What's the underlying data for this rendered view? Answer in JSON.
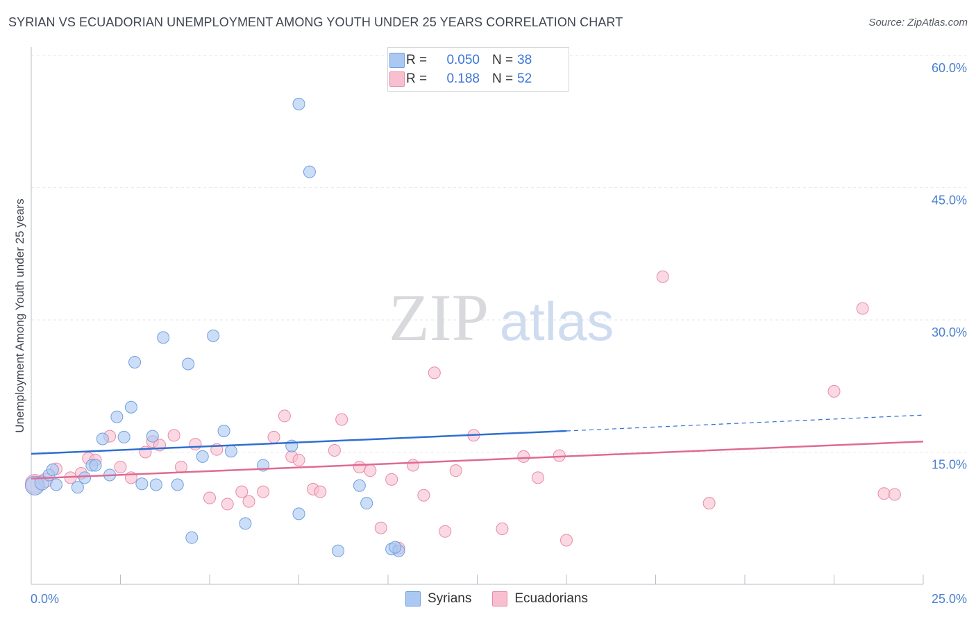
{
  "title": "SYRIAN VS ECUADORIAN UNEMPLOYMENT AMONG YOUTH UNDER 25 YEARS CORRELATION CHART",
  "source": "Source: ZipAtlas.com",
  "watermark": {
    "zip": "ZIP",
    "atlas": "atlas"
  },
  "legend": {
    "rows": [
      {
        "r_label": "R =",
        "r_value": "0.050",
        "n_label": "N =",
        "n_value": "38"
      },
      {
        "r_label": "R =",
        "r_value": "0.188",
        "n_label": "N =",
        "n_value": "52"
      }
    ]
  },
  "bottom_legend": [
    "Syrians",
    "Ecuadorians"
  ],
  "colors": {
    "syrian_fill": "#aac8f2",
    "syrian_stroke": "#6f9fe0",
    "syrian_line": "#2f6fd0",
    "ecuador_fill": "#f7bfd0",
    "ecuador_stroke": "#e88aa8",
    "ecuador_line": "#e06a92",
    "tick": "#4a7fd0",
    "grid": "#e3e5e9"
  },
  "chart_data": {
    "type": "scatter",
    "title": "SYRIAN VS ECUADORIAN UNEMPLOYMENT AMONG YOUTH UNDER 25 YEARS CORRELATION CHART",
    "xlabel": "",
    "ylabel": "Unemployment Among Youth under 25 years",
    "xlim": [
      0,
      25
    ],
    "ylim": [
      0,
      60
    ],
    "x_tick_labels": [
      "0.0%",
      "25.0%"
    ],
    "y_ticks": [
      15,
      30,
      45,
      60
    ],
    "y_tick_labels": [
      "15.0%",
      "30.0%",
      "45.0%",
      "60.0%"
    ],
    "series": [
      {
        "name": "Syrians",
        "R": 0.05,
        "N": 38,
        "trend": {
          "x0": 0,
          "y0": 14.8,
          "x1": 15,
          "y1": 17.4,
          "dashed_to_x": 25,
          "dashed_to_y": 19.2
        },
        "points": [
          [
            0.1,
            11.2,
            1.6
          ],
          [
            0.3,
            11.5,
            1.2
          ],
          [
            0.5,
            12.4,
            1
          ],
          [
            0.6,
            13.0,
            1
          ],
          [
            0.7,
            11.3,
            1
          ],
          [
            1.3,
            11.0,
            1
          ],
          [
            1.5,
            12.1,
            1
          ],
          [
            1.7,
            13.5,
            1
          ],
          [
            1.8,
            13.5,
            1
          ],
          [
            2.0,
            16.5,
            1
          ],
          [
            2.2,
            12.4,
            1
          ],
          [
            2.4,
            19.0,
            1
          ],
          [
            2.6,
            16.7,
            1
          ],
          [
            2.8,
            20.1,
            1
          ],
          [
            2.9,
            25.2,
            1
          ],
          [
            3.1,
            11.4,
            1
          ],
          [
            3.4,
            16.8,
            1
          ],
          [
            3.5,
            11.3,
            1
          ],
          [
            3.7,
            28.0,
            1
          ],
          [
            4.1,
            11.3,
            1
          ],
          [
            4.4,
            25.0,
            1
          ],
          [
            4.5,
            5.3,
            1
          ],
          [
            4.8,
            14.5,
            1
          ],
          [
            5.1,
            28.2,
            1
          ],
          [
            5.4,
            17.4,
            1
          ],
          [
            5.6,
            15.1,
            1
          ],
          [
            6.0,
            6.9,
            1
          ],
          [
            6.5,
            13.5,
            1
          ],
          [
            7.3,
            15.7,
            1
          ],
          [
            7.5,
            8.0,
            1
          ],
          [
            7.5,
            54.5,
            1
          ],
          [
            7.8,
            46.8,
            1
          ],
          [
            8.6,
            3.8,
            1
          ],
          [
            9.2,
            11.2,
            1
          ],
          [
            9.4,
            9.2,
            1
          ],
          [
            10.1,
            4.0,
            1
          ],
          [
            10.3,
            3.8,
            1
          ],
          [
            10.2,
            4.2,
            1
          ]
        ]
      },
      {
        "name": "Ecuadorians",
        "R": 0.188,
        "N": 52,
        "trend": {
          "x0": 0,
          "y0": 12.0,
          "x1": 25,
          "y1": 16.2
        },
        "points": [
          [
            0.1,
            11.4,
            1.6
          ],
          [
            0.4,
            11.8,
            1.2
          ],
          [
            0.7,
            13.1,
            1
          ],
          [
            1.1,
            12.1,
            1
          ],
          [
            1.4,
            12.6,
            1
          ],
          [
            1.6,
            14.3,
            1
          ],
          [
            1.8,
            14.1,
            1
          ],
          [
            2.2,
            16.8,
            1
          ],
          [
            2.5,
            13.3,
            1
          ],
          [
            2.8,
            12.1,
            1
          ],
          [
            3.2,
            15.0,
            1
          ],
          [
            3.4,
            16.2,
            1
          ],
          [
            3.6,
            15.8,
            1
          ],
          [
            4.0,
            16.9,
            1
          ],
          [
            4.2,
            13.3,
            1
          ],
          [
            4.6,
            15.9,
            1
          ],
          [
            5.0,
            9.8,
            1
          ],
          [
            5.2,
            15.3,
            1
          ],
          [
            5.5,
            9.1,
            1
          ],
          [
            5.9,
            10.5,
            1
          ],
          [
            6.1,
            9.4,
            1
          ],
          [
            6.5,
            10.5,
            1
          ],
          [
            6.8,
            16.7,
            1
          ],
          [
            7.1,
            19.1,
            1
          ],
          [
            7.3,
            14.5,
            1
          ],
          [
            7.5,
            14.1,
            1
          ],
          [
            7.9,
            10.8,
            1
          ],
          [
            8.1,
            10.5,
            1
          ],
          [
            8.5,
            15.2,
            1
          ],
          [
            8.7,
            18.7,
            1
          ],
          [
            9.2,
            13.3,
            1
          ],
          [
            9.5,
            12.9,
            1
          ],
          [
            9.8,
            6.4,
            1
          ],
          [
            10.1,
            11.9,
            1
          ],
          [
            10.3,
            4.1,
            1
          ],
          [
            10.7,
            13.5,
            1
          ],
          [
            11.0,
            10.1,
            1
          ],
          [
            11.3,
            24.0,
            1
          ],
          [
            11.6,
            6.0,
            1
          ],
          [
            11.9,
            12.9,
            1
          ],
          [
            12.4,
            16.9,
            1
          ],
          [
            13.2,
            6.3,
            1
          ],
          [
            13.8,
            14.5,
            1
          ],
          [
            14.2,
            12.1,
            1
          ],
          [
            14.8,
            14.6,
            1
          ],
          [
            15.0,
            5.0,
            1
          ],
          [
            17.7,
            34.9,
            1
          ],
          [
            19.0,
            9.2,
            1
          ],
          [
            22.5,
            21.9,
            1
          ],
          [
            23.3,
            31.3,
            1
          ],
          [
            23.9,
            10.3,
            1
          ],
          [
            24.2,
            10.2,
            1
          ]
        ]
      }
    ]
  }
}
